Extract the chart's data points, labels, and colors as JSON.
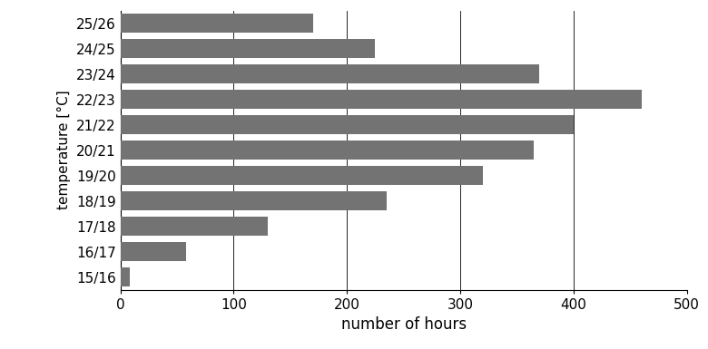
{
  "categories": [
    "15/16",
    "16/17",
    "17/18",
    "18/19",
    "19/20",
    "20/21",
    "21/22",
    "22/23",
    "23/24",
    "24/25",
    "25/26"
  ],
  "values": [
    8,
    58,
    130,
    235,
    320,
    365,
    400,
    460,
    370,
    225,
    170
  ],
  "bar_color": "#737373",
  "xlabel": "number of hours",
  "ylabel": "temperature [°C]",
  "xlim": [
    0,
    500
  ],
  "xticks": [
    0,
    100,
    200,
    300,
    400,
    500
  ],
  "bar_height": 0.75,
  "figsize": [
    7.8,
    3.85
  ],
  "dpi": 100,
  "xlabel_fontsize": 12,
  "ylabel_fontsize": 11,
  "tick_fontsize": 11
}
